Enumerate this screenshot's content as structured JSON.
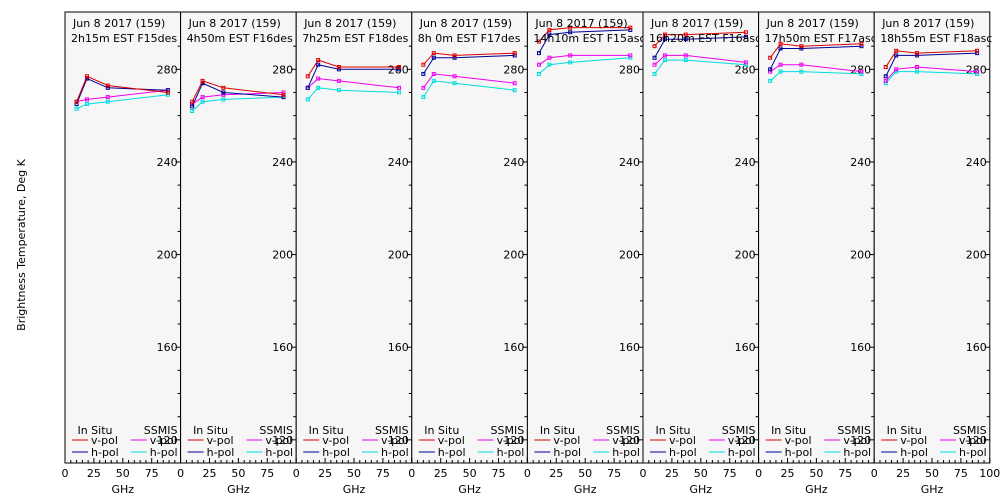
{
  "chart_data": {
    "type": "line",
    "ylabel": "Brightness Temperature, Deg K",
    "xlabel": "GHz",
    "ylim": [
      110,
      300
    ],
    "xlim": [
      0,
      100
    ],
    "yticks": [
      120,
      160,
      200,
      240,
      280
    ],
    "xticks": [
      0,
      25,
      50,
      75,
      100
    ],
    "xtick_labels": [
      "0",
      "25",
      "50",
      "75",
      "100"
    ],
    "shared_x_ghz": [
      10,
      19,
      37,
      89
    ],
    "colors": {
      "insitu_v": "#dd0000",
      "insitu_h": "#000099",
      "ssmis_v": "#ee00ee",
      "ssmis_h": "#00dddd",
      "panel_bg": "#f6f6f6"
    },
    "legend": {
      "title_insitu": "In Situ",
      "title_ssmis": "SSMIS",
      "vpol": "v-pol",
      "hpol": "h-pol"
    },
    "panels": [
      {
        "line1": "Jun 8 2017 (159)",
        "line2": "2h15m  EST  F15des",
        "insitu_v": [
          266,
          277,
          273,
          270
        ],
        "insitu_h": [
          265,
          276,
          272,
          271
        ],
        "ssmis_v": [
          266,
          267,
          268,
          271
        ],
        "ssmis_h": [
          263,
          265,
          266,
          269
        ]
      },
      {
        "line1": "Jun 8 2017 (159)",
        "line2": "4h50m  EST  F16des",
        "insitu_v": [
          266,
          275,
          272,
          269
        ],
        "insitu_h": [
          264,
          274,
          270,
          268
        ],
        "ssmis_v": [
          265,
          268,
          269,
          270
        ],
        "ssmis_h": [
          262,
          266,
          267,
          268
        ]
      },
      {
        "line1": "Jun 8 2017 (159)",
        "line2": "7h25m  EST  F18des",
        "insitu_v": [
          277,
          284,
          281,
          281
        ],
        "insitu_h": [
          272,
          282,
          280,
          280
        ],
        "ssmis_v": [
          272,
          276,
          275,
          272
        ],
        "ssmis_h": [
          267,
          272,
          271,
          270
        ]
      },
      {
        "line1": "Jun 8 2017 (159)",
        "line2": "8h 0m  EST  F17des",
        "insitu_v": [
          282,
          287,
          286,
          287
        ],
        "insitu_h": [
          278,
          285,
          285,
          286
        ],
        "ssmis_v": [
          272,
          278,
          277,
          274
        ],
        "ssmis_h": [
          268,
          275,
          274,
          271
        ]
      },
      {
        "line1": "Jun 8 2017 (159)",
        "line2": "14h10m  EST  F15asc",
        "insitu_v": [
          292,
          297,
          298,
          298
        ],
        "insitu_h": [
          287,
          295,
          296,
          297
        ],
        "ssmis_v": [
          282,
          285,
          286,
          286
        ],
        "ssmis_h": [
          278,
          282,
          283,
          285
        ]
      },
      {
        "line1": "Jun 8 2017 (159)",
        "line2": "16h20m  EST  F16asc",
        "insitu_v": [
          290,
          295,
          295,
          296
        ],
        "insitu_h": [
          285,
          293,
          293,
          294
        ],
        "ssmis_v": [
          282,
          286,
          286,
          283
        ],
        "ssmis_h": [
          278,
          284,
          284,
          282
        ]
      },
      {
        "line1": "Jun 8 2017 (159)",
        "line2": "17h50m  EST  F17asc",
        "insitu_v": [
          285,
          291,
          290,
          291
        ],
        "insitu_h": [
          280,
          289,
          289,
          290
        ],
        "ssmis_v": [
          279,
          282,
          282,
          279
        ],
        "ssmis_h": [
          275,
          279,
          279,
          278
        ]
      },
      {
        "line1": "Jun 8 2017 (159)",
        "line2": "18h55m  EST  F18asc",
        "insitu_v": [
          281,
          288,
          287,
          288
        ],
        "insitu_h": [
          277,
          286,
          286,
          287
        ],
        "ssmis_v": [
          275,
          280,
          281,
          279
        ],
        "ssmis_h": [
          274,
          279,
          279,
          278
        ]
      }
    ]
  }
}
